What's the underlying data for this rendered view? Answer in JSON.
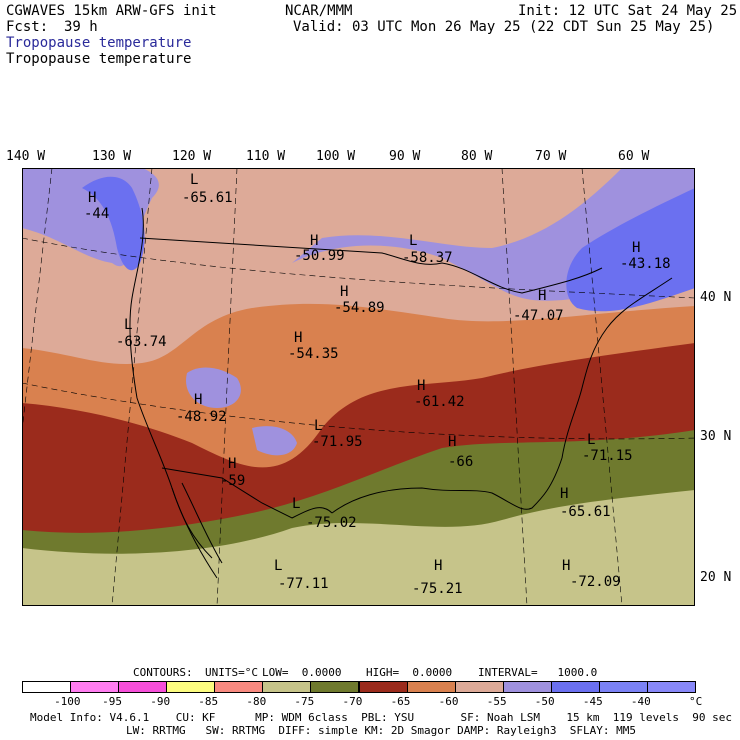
{
  "header": {
    "model": "CGWAVES 15km ARW-GFS init",
    "center": "NCAR/MMM",
    "init": "Init: 12 UTC Sat 24 May 25",
    "fcst_label": "Fcst:",
    "fcst_value": "39 h",
    "valid": "Valid: 03 UTC Mon 26 May 25 (22 CDT Sun 25 May 25)",
    "field_filled": "Tropopause temperature",
    "field_contour": "Tropopause temperature"
  },
  "axes": {
    "lon_labels": [
      "140 W",
      "130 W",
      "120 W",
      "110 W",
      "100 W",
      "90 W",
      "80 W",
      "70 W",
      "60 W"
    ],
    "lat_labels": [
      "40 N",
      "30 N",
      "20 N"
    ]
  },
  "extrema": [
    {
      "type": "H",
      "value": "-44"
    },
    {
      "type": "L",
      "value": "-65.61"
    },
    {
      "type": "H",
      "value": "-50.99"
    },
    {
      "type": "L",
      "value": "-58.37"
    },
    {
      "type": "H",
      "value": "-43.18"
    },
    {
      "type": "H",
      "value": "-54.89"
    },
    {
      "type": "H",
      "value": "-47.07"
    },
    {
      "type": "L",
      "value": "-63.74"
    },
    {
      "type": "H",
      "value": "-54.35"
    },
    {
      "type": "H",
      "value": "-61.42"
    },
    {
      "type": "H",
      "value": "-48.92"
    },
    {
      "type": "L",
      "value": "-71.95"
    },
    {
      "type": "L",
      "value": "-71.15"
    },
    {
      "type": "H",
      "value": "-59"
    },
    {
      "type": "H",
      "value": "-66"
    },
    {
      "type": "H",
      "value": "-65.61"
    },
    {
      "type": "L",
      "value": "-75.02"
    },
    {
      "type": "L",
      "value": "-77.11"
    },
    {
      "type": "H",
      "value": "-75.21"
    },
    {
      "type": "H",
      "value": "-72.09"
    }
  ],
  "contour_info": {
    "contours": "CONTOURS:",
    "units": "UNITS=°C",
    "low": "LOW=  0.0000",
    "high": "HIGH=  0.0000",
    "interval": "INTERVAL=   1000.0"
  },
  "colorbar": {
    "colors": [
      "#ffffff",
      "#ff7df0",
      "#f64fd9",
      "#fcfc80",
      "#f88a80",
      "#c6c48a",
      "#6f7a2e",
      "#9b2b1c",
      "#d9814f",
      "#ddaa98",
      "#9f91de",
      "#6b70f0",
      "#7b82f5",
      "#8888f8"
    ],
    "labels": [
      "-100",
      "-95",
      "-90",
      "-85",
      "-80",
      "-75",
      "-70",
      "-65",
      "-60",
      "-55",
      "-50",
      "-45",
      "-40",
      "°C"
    ]
  },
  "footer": {
    "line1": "Model Info: V4.6.1    CU: KF      MP: WDM 6class  PBL: YSU       SF: Noah LSM    15 km  119 levels  90 sec",
    "line2": "LW: RRTMG   SW: RRTMG  DIFF: simple KM: 2D Smagor DAMP: Rayleigh3  SFLAY: MM5"
  }
}
